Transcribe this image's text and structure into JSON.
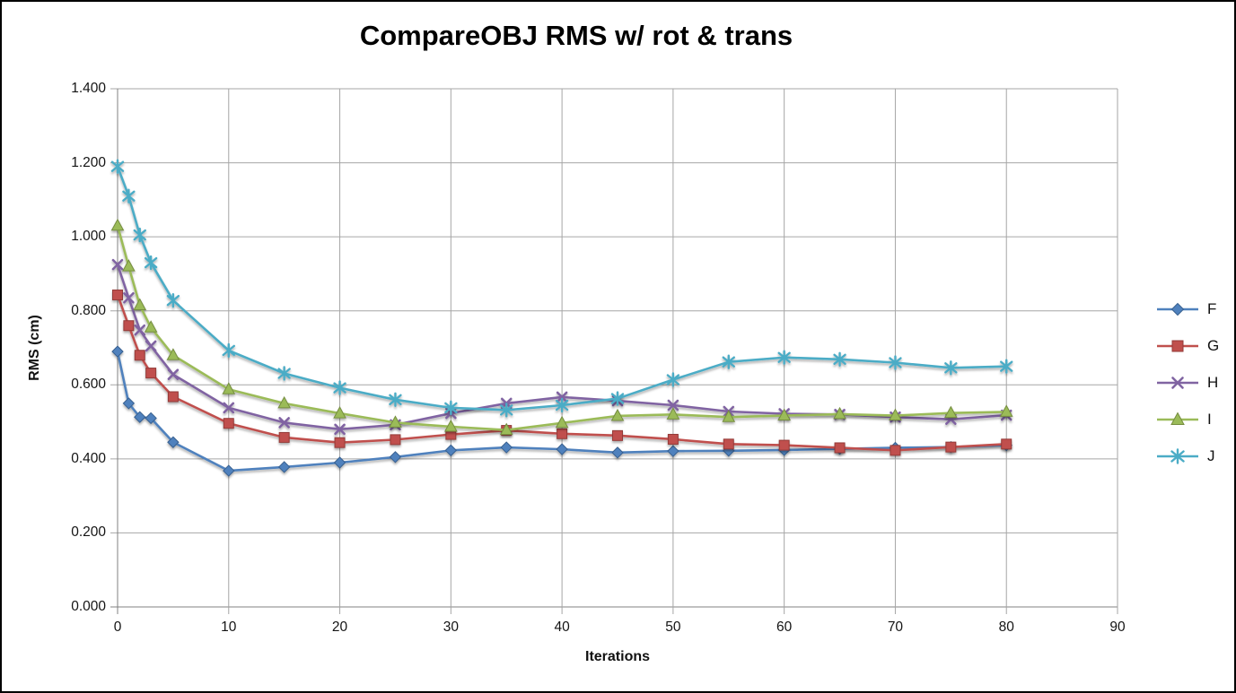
{
  "chart_data": {
    "type": "line",
    "title": "CompareOBJ RMS w/ rot & trans",
    "xlabel": "Iterations",
    "ylabel": "RMS (cm)",
    "grid": true,
    "legend_position": "right",
    "xlim": [
      0,
      90
    ],
    "ylim": [
      0.0,
      1.4
    ],
    "x_ticks": [
      0,
      10,
      20,
      30,
      40,
      50,
      60,
      70,
      80,
      90
    ],
    "y_ticks": [
      "0.000",
      "0.200",
      "0.400",
      "0.600",
      "0.800",
      "1.000",
      "1.200",
      "1.400"
    ],
    "x": [
      0,
      1,
      2,
      3,
      5,
      10,
      15,
      20,
      25,
      30,
      35,
      40,
      45,
      50,
      55,
      60,
      65,
      70,
      75,
      80
    ],
    "series": [
      {
        "name": "F",
        "color": "#4F81BD",
        "marker_stroke": "#38608f",
        "marker": "diamond",
        "values": [
          0.69,
          0.55,
          0.513,
          0.51,
          0.445,
          0.368,
          0.378,
          0.39,
          0.405,
          0.423,
          0.431,
          0.426,
          0.417,
          0.421,
          0.422,
          0.424,
          0.427,
          0.43,
          0.432,
          0.437
        ]
      },
      {
        "name": "G",
        "color": "#C0504D",
        "marker_stroke": "#933a38",
        "marker": "square",
        "values": [
          0.843,
          0.76,
          0.68,
          0.632,
          0.568,
          0.496,
          0.458,
          0.444,
          0.452,
          0.466,
          0.477,
          0.468,
          0.463,
          0.453,
          0.44,
          0.437,
          0.43,
          0.423,
          0.432,
          0.44
        ]
      },
      {
        "name": "H",
        "color": "#8064A2",
        "marker_stroke": "#604a7b",
        "marker": "x",
        "values": [
          0.925,
          0.835,
          0.748,
          0.705,
          0.628,
          0.538,
          0.498,
          0.48,
          0.492,
          0.523,
          0.55,
          0.567,
          0.557,
          0.545,
          0.528,
          0.522,
          0.52,
          0.513,
          0.507,
          0.518
        ]
      },
      {
        "name": "I",
        "color": "#9BBB59",
        "marker_stroke": "#758d3f",
        "marker": "triangle",
        "values": [
          1.03,
          0.92,
          0.815,
          0.755,
          0.68,
          0.588,
          0.55,
          0.523,
          0.498,
          0.487,
          0.478,
          0.497,
          0.516,
          0.52,
          0.513,
          0.517,
          0.521,
          0.517,
          0.524,
          0.527
        ]
      },
      {
        "name": "J",
        "color": "#4BACC6",
        "marker_stroke": "#31859b",
        "marker": "asterisk",
        "values": [
          1.19,
          1.11,
          1.005,
          0.93,
          0.828,
          0.693,
          0.631,
          0.592,
          0.56,
          0.538,
          0.532,
          0.545,
          0.563,
          0.614,
          0.662,
          0.674,
          0.669,
          0.66,
          0.646,
          0.65
        ]
      }
    ],
    "style": {
      "gridline_color": "#a6a6a6",
      "axis_color": "#808080",
      "background": "#ffffff"
    }
  }
}
